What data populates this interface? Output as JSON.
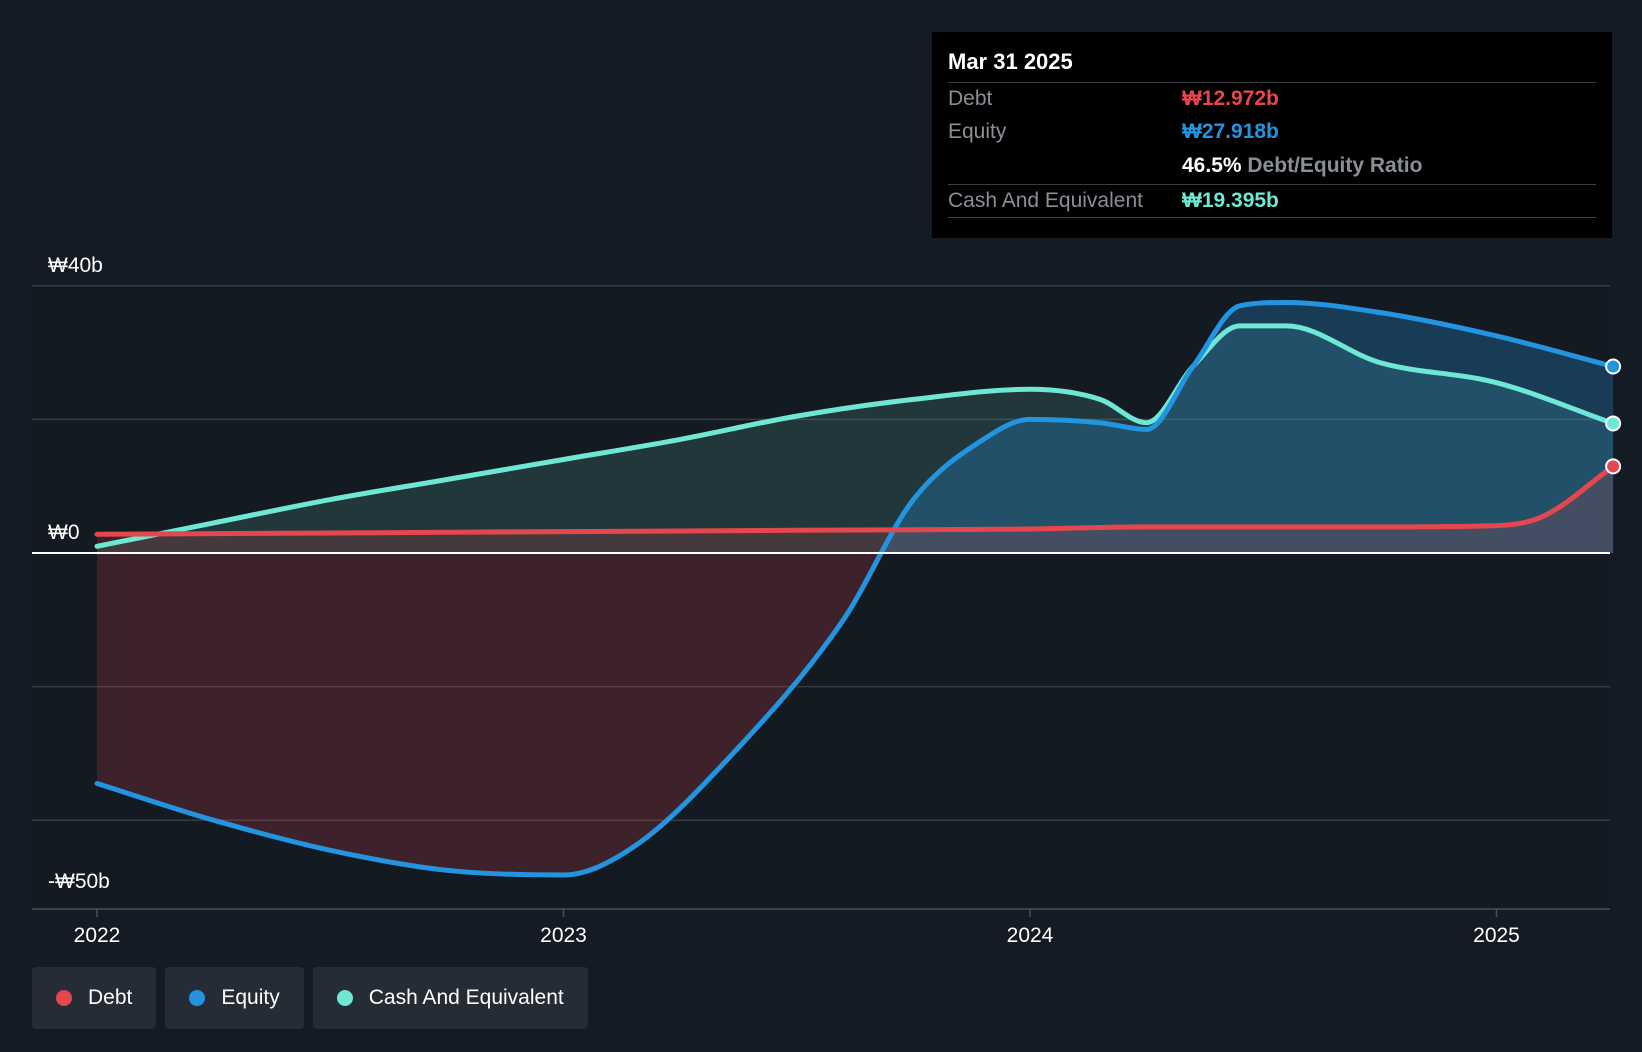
{
  "tooltip": {
    "date": "Mar 31 2025",
    "debt_label": "Debt",
    "debt_value": "₩12.972b",
    "equity_label": "Equity",
    "equity_value": "₩27.918b",
    "ratio_value": "46.5%",
    "ratio_label": "Debt/Equity Ratio",
    "cash_label": "Cash And Equivalent",
    "cash_value": "₩19.395b"
  },
  "legend": {
    "items": [
      {
        "label": "Debt",
        "color": "#e5474f"
      },
      {
        "label": "Equity",
        "color": "#2394df"
      },
      {
        "label": "Cash And Equivalent",
        "color": "#6ee8d4"
      }
    ]
  },
  "colors": {
    "background": "#151b24",
    "debt": "#e5474f",
    "equity": "#2394df",
    "cash": "#6ee8d4",
    "grid": "#353b44"
  },
  "chart_data": {
    "type": "area",
    "title": "",
    "xlabel": "",
    "ylabel": "",
    "y_tick_labels": [
      "₩40b",
      "₩0",
      "-₩50b"
    ],
    "y_tick_values": [
      40,
      0,
      -50
    ],
    "x_tick_labels": [
      "2022",
      "2023",
      "2024",
      "2025"
    ],
    "x_tick_values": [
      2022,
      2023,
      2024,
      2025
    ],
    "xlim": [
      2022,
      2025.25
    ],
    "ylim": [
      -50,
      40
    ],
    "grid": true,
    "units": "₩ billions",
    "series": [
      {
        "name": "Debt",
        "x": [
          2022.0,
          2022.5,
          2023.0,
          2023.5,
          2024.0,
          2024.25,
          2024.5,
          2024.75,
          2025.0,
          2025.1,
          2025.25
        ],
        "values": [
          2.8,
          3.0,
          3.2,
          3.4,
          3.6,
          3.9,
          3.9,
          3.9,
          4.1,
          5.5,
          12.972
        ]
      },
      {
        "name": "Equity",
        "x": [
          2022.0,
          2022.25,
          2022.5,
          2022.75,
          2023.0,
          2023.15,
          2023.35,
          2023.6,
          2023.75,
          2023.9,
          2024.0,
          2024.15,
          2024.25,
          2024.35,
          2024.45,
          2024.55,
          2024.75,
          2025.0,
          2025.25
        ],
        "values": [
          -34.5,
          -40.0,
          -44.5,
          -47.5,
          -48.2,
          -44.0,
          -31.0,
          -10.0,
          8.0,
          17.0,
          20.0,
          19.5,
          18.5,
          28.0,
          37.0,
          37.5,
          36.0,
          32.5,
          27.918
        ]
      },
      {
        "name": "Cash And Equivalent",
        "x": [
          2022.0,
          2022.25,
          2022.5,
          2022.75,
          2023.0,
          2023.25,
          2023.5,
          2023.75,
          2024.0,
          2024.15,
          2024.25,
          2024.35,
          2024.45,
          2024.55,
          2024.75,
          2025.0,
          2025.25
        ],
        "values": [
          1.0,
          4.5,
          8.0,
          11.0,
          14.0,
          17.0,
          20.5,
          23.0,
          24.5,
          23.0,
          19.5,
          28.0,
          34.0,
          34.0,
          28.5,
          25.5,
          19.395
        ]
      }
    ]
  }
}
